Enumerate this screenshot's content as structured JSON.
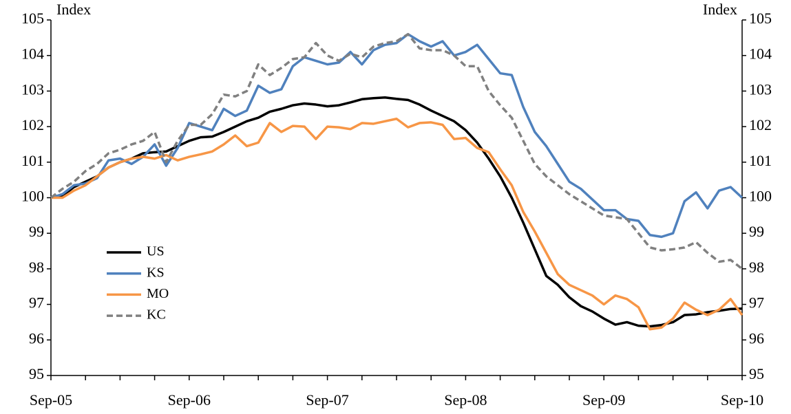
{
  "chart_data": {
    "type": "line",
    "y_label": "Index",
    "y2_label": "Index",
    "categories": [
      "Sep-05",
      null,
      null,
      null,
      null,
      null,
      null,
      null,
      null,
      null,
      null,
      null,
      "Sep-06",
      null,
      null,
      null,
      null,
      null,
      null,
      null,
      null,
      null,
      null,
      null,
      "Sep-07",
      null,
      null,
      null,
      null,
      null,
      null,
      null,
      null,
      null,
      null,
      null,
      "Sep-08",
      null,
      null,
      null,
      null,
      null,
      null,
      null,
      null,
      null,
      null,
      null,
      "Sep-09",
      null,
      null,
      null,
      null,
      null,
      null,
      null,
      null,
      null,
      null,
      null,
      "Sep-10"
    ],
    "series": [
      {
        "name": "US",
        "color": "#000000",
        "style": "solid",
        "values": [
          100.0,
          100.05,
          100.3,
          100.45,
          100.6,
          100.85,
          101.0,
          101.1,
          101.25,
          101.28,
          101.3,
          101.45,
          101.6,
          101.7,
          101.72,
          101.85,
          102.0,
          102.15,
          102.25,
          102.42,
          102.5,
          102.6,
          102.65,
          102.62,
          102.57,
          102.6,
          102.68,
          102.77,
          102.8,
          102.82,
          102.78,
          102.75,
          102.62,
          102.45,
          102.3,
          102.15,
          101.9,
          101.55,
          101.1,
          100.6,
          100.0,
          99.3,
          98.55,
          97.8,
          97.55,
          97.2,
          96.95,
          96.8,
          96.6,
          96.43,
          96.5,
          96.4,
          96.38,
          96.42,
          96.5,
          96.7,
          96.72,
          96.78,
          96.82,
          96.87,
          96.88
        ]
      },
      {
        "name": "KS",
        "color": "#4f81bd",
        "style": "solid",
        "values": [
          100.0,
          100.1,
          100.35,
          100.4,
          100.55,
          101.05,
          101.1,
          100.95,
          101.15,
          101.5,
          100.9,
          101.4,
          102.1,
          102.0,
          101.9,
          102.5,
          102.3,
          102.45,
          103.15,
          102.95,
          103.05,
          103.7,
          103.95,
          103.85,
          103.75,
          103.8,
          104.1,
          103.75,
          104.15,
          104.3,
          104.35,
          104.6,
          104.4,
          104.25,
          104.4,
          104.0,
          104.1,
          104.3,
          103.9,
          103.5,
          103.45,
          102.55,
          101.85,
          101.45,
          100.95,
          100.45,
          100.25,
          99.95,
          99.65,
          99.65,
          99.4,
          99.35,
          98.95,
          98.9,
          99.0,
          99.9,
          100.15,
          99.7,
          100.2,
          100.3,
          100.0
        ]
      },
      {
        "name": "MO",
        "color": "#f79646",
        "style": "solid",
        "values": [
          100.0,
          100.0,
          100.2,
          100.35,
          100.6,
          100.85,
          101.0,
          101.1,
          101.15,
          101.1,
          101.2,
          101.05,
          101.15,
          101.22,
          101.3,
          101.5,
          101.75,
          101.45,
          101.55,
          102.1,
          101.85,
          102.02,
          102.0,
          101.65,
          102.0,
          101.98,
          101.93,
          102.1,
          102.08,
          102.15,
          102.22,
          101.98,
          102.1,
          102.12,
          102.05,
          101.65,
          101.68,
          101.4,
          101.28,
          100.8,
          100.35,
          99.6,
          99.05,
          98.45,
          97.85,
          97.55,
          97.4,
          97.25,
          97.0,
          97.25,
          97.15,
          96.92,
          96.3,
          96.35,
          96.6,
          97.05,
          96.85,
          96.7,
          96.85,
          97.15,
          96.7
        ]
      },
      {
        "name": "KC",
        "color": "#808080",
        "style": "dashed",
        "values": [
          100.0,
          100.25,
          100.45,
          100.75,
          100.95,
          101.25,
          101.35,
          101.5,
          101.6,
          101.85,
          101.0,
          101.6,
          102.05,
          102.05,
          102.35,
          102.9,
          102.85,
          103.0,
          103.75,
          103.45,
          103.65,
          103.9,
          103.95,
          104.35,
          104.0,
          103.85,
          104.05,
          103.95,
          104.25,
          104.35,
          104.4,
          104.6,
          104.2,
          104.15,
          104.15,
          104.0,
          103.7,
          103.7,
          103.0,
          102.6,
          102.25,
          101.6,
          100.95,
          100.6,
          100.35,
          100.1,
          99.9,
          99.7,
          99.5,
          99.45,
          99.4,
          99.0,
          98.6,
          98.52,
          98.55,
          98.6,
          98.75,
          98.45,
          98.2,
          98.25,
          98.0
        ]
      }
    ],
    "ylim": [
      95,
      105
    ],
    "yticks": [
      95,
      96,
      97,
      98,
      99,
      100,
      101,
      102,
      103,
      104,
      105
    ],
    "y2lim": [
      95,
      105
    ],
    "y2ticks": [
      95,
      96,
      97,
      98,
      99,
      100,
      101,
      102,
      103,
      104,
      105
    ],
    "grid": false,
    "legend": "left"
  }
}
